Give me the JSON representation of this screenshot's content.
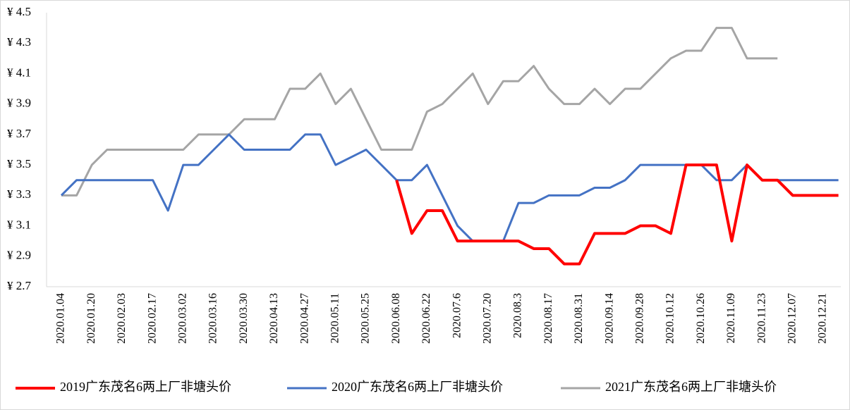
{
  "chart_data": {
    "type": "line",
    "categories": [
      "2020.01.04",
      null,
      "2020.01.20",
      null,
      "2020.02.03",
      null,
      "2020.02.17",
      null,
      "2020.03.02",
      null,
      "2020.03.16",
      null,
      "2020.03.30",
      null,
      "2020.04.13",
      null,
      "2020.04.27",
      null,
      "2020.05.11",
      null,
      "2020.05.25",
      null,
      "2020.06.08",
      null,
      "2020.06.22",
      null,
      "2020.07.6",
      null,
      "2020.07.20",
      null,
      "2020.08.3",
      null,
      "2020.08.17",
      null,
      "2020.08.31",
      null,
      "2020.09.14",
      null,
      "2020.09.28",
      null,
      "2020.10.12",
      null,
      "2020.10.26",
      null,
      "2020.11.09",
      null,
      "2020.11.23",
      null,
      "2020.12.07",
      null,
      "2020.12.21",
      null
    ],
    "series": [
      {
        "name": "2019广东茂名6两上厂非塘头价",
        "color": "#ff0000",
        "values": [
          null,
          null,
          null,
          null,
          null,
          null,
          null,
          null,
          null,
          null,
          null,
          null,
          null,
          null,
          null,
          null,
          null,
          null,
          null,
          null,
          null,
          null,
          3.4,
          3.05,
          3.2,
          3.2,
          3.0,
          3.0,
          3.0,
          3.0,
          3.0,
          2.95,
          2.95,
          2.85,
          2.85,
          3.05,
          3.05,
          3.05,
          3.1,
          3.1,
          3.05,
          3.5,
          3.5,
          3.5,
          3.0,
          3.5,
          3.4,
          3.4,
          3.3,
          3.3,
          3.3,
          3.3
        ]
      },
      {
        "name": "2020广东茂名6两上厂非塘头价",
        "color": "#4472c4",
        "values": [
          3.3,
          3.4,
          3.4,
          3.4,
          3.4,
          3.4,
          3.4,
          3.2,
          3.5,
          3.5,
          3.6,
          3.7,
          3.6,
          3.6,
          3.6,
          3.6,
          3.7,
          3.7,
          3.5,
          3.55,
          3.6,
          3.5,
          3.4,
          3.4,
          3.5,
          3.3,
          3.1,
          3.0,
          3.0,
          3.0,
          3.25,
          3.25,
          3.3,
          3.3,
          3.3,
          3.35,
          3.35,
          3.4,
          3.5,
          3.5,
          3.5,
          3.5,
          3.5,
          3.4,
          3.4,
          3.5,
          3.4,
          3.4,
          3.4,
          3.4,
          3.4,
          3.4
        ]
      },
      {
        "name": "2021广东茂名6两上厂非塘头价",
        "color": "#a5a5a5",
        "values": [
          3.3,
          3.3,
          3.5,
          3.6,
          3.6,
          3.6,
          3.6,
          3.6,
          3.6,
          3.7,
          3.7,
          3.7,
          3.8,
          3.8,
          3.8,
          4.0,
          4.0,
          4.1,
          3.9,
          4.0,
          3.8,
          3.6,
          3.6,
          3.6,
          3.85,
          3.9,
          4.0,
          4.1,
          3.9,
          4.05,
          4.05,
          4.15,
          4.0,
          3.9,
          3.9,
          4.0,
          3.9,
          4.0,
          4.0,
          4.1,
          4.2,
          4.25,
          4.25,
          4.4,
          4.4,
          4.2,
          4.2,
          4.2,
          null,
          null,
          null,
          null
        ]
      }
    ],
    "ylim": [
      2.7,
      4.5
    ],
    "yticks": [
      {
        "value": 2.7,
        "label": "¥ 2.7"
      },
      {
        "value": 2.9,
        "label": "¥ 2.9"
      },
      {
        "value": 3.1,
        "label": "¥ 3.1"
      },
      {
        "value": 3.3,
        "label": "¥ 3.3"
      },
      {
        "value": 3.5,
        "label": "¥ 3.5"
      },
      {
        "value": 3.7,
        "label": "¥ 3.7"
      },
      {
        "value": 3.9,
        "label": "¥ 3.9"
      },
      {
        "value": 4.1,
        "label": "¥ 4.1"
      },
      {
        "value": 4.3,
        "label": "¥ 4.3"
      },
      {
        "value": 4.5,
        "label": "¥ 4.5"
      }
    ],
    "grid": false,
    "legend": "bottom"
  }
}
